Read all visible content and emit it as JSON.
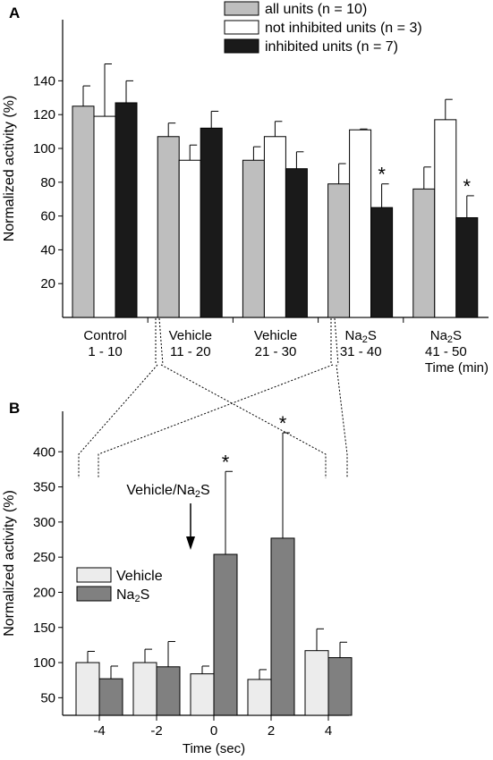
{
  "chart_data": [
    {
      "panel_label": "A",
      "type": "bar",
      "ylabel": "Normalized activity (%)",
      "xlabel": "Time (min)",
      "ylim": [
        0,
        150
      ],
      "yticks": [
        20,
        40,
        60,
        80,
        100,
        120,
        140
      ],
      "legend_position": "top-right",
      "categories": [
        {
          "top": "Control",
          "bottom": "1 - 10",
          "sub": false
        },
        {
          "top": "Vehicle",
          "bottom": "11 - 20",
          "sub": false
        },
        {
          "top": "Vehicle",
          "bottom": "21 - 30",
          "sub": false
        },
        {
          "top": "Na",
          "bottom": "31 - 40",
          "sub": true
        },
        {
          "top": "Na",
          "bottom": "41 - 50",
          "sub": true
        }
      ],
      "subscript": {
        "digit": "2",
        "suffix": "S"
      },
      "series": [
        {
          "name": "all units (n = 10)",
          "color": "#bebebe",
          "values": [
            125,
            107,
            93,
            79,
            76
          ],
          "errors": [
            12,
            8,
            8,
            12,
            13
          ]
        },
        {
          "name": "not inhibited units (n = 3)",
          "color": "#ffffff",
          "values": [
            119,
            93,
            107,
            111,
            117
          ],
          "errors": [
            31,
            9,
            9,
            0.5,
            12
          ]
        },
        {
          "name": "inhibited units (n = 7)",
          "color": "#1a1a1a",
          "values": [
            127,
            112,
            88,
            65,
            59
          ],
          "errors": [
            13,
            10,
            10,
            14,
            13
          ]
        }
      ],
      "significance": [
        {
          "series": 2,
          "category": 3,
          "label": "*"
        },
        {
          "series": 2,
          "category": 4,
          "label": "*"
        }
      ]
    },
    {
      "panel_label": "B",
      "type": "bar",
      "ylabel": "Normalized activity (%)",
      "xlabel": "Time (sec)",
      "ylim": [
        25,
        425
      ],
      "yticks": [
        50,
        100,
        150,
        200,
        250,
        300,
        350,
        400
      ],
      "categories": [
        "-4",
        "-2",
        "0",
        "2",
        "4"
      ],
      "legend_position": "left",
      "series": [
        {
          "name": "Vehicle",
          "color": "#ececec",
          "values": [
            100,
            100,
            84,
            76,
            117
          ],
          "errors": [
            16,
            19,
            11,
            14,
            31
          ]
        },
        {
          "name": "Na",
          "name_sub": "2",
          "name_suffix": "S",
          "color": "#808080",
          "values": [
            77,
            94,
            254,
            277,
            107
          ],
          "errors": [
            18,
            36,
            118,
            150,
            22
          ]
        }
      ],
      "significance": [
        {
          "series": 1,
          "category": 2,
          "label": "*"
        },
        {
          "series": 1,
          "category": 3,
          "label": "*"
        }
      ],
      "annotation": {
        "text": "Vehicle/Na",
        "sub": "2",
        "suffix": "S",
        "arrow_at_category": 2
      }
    }
  ]
}
